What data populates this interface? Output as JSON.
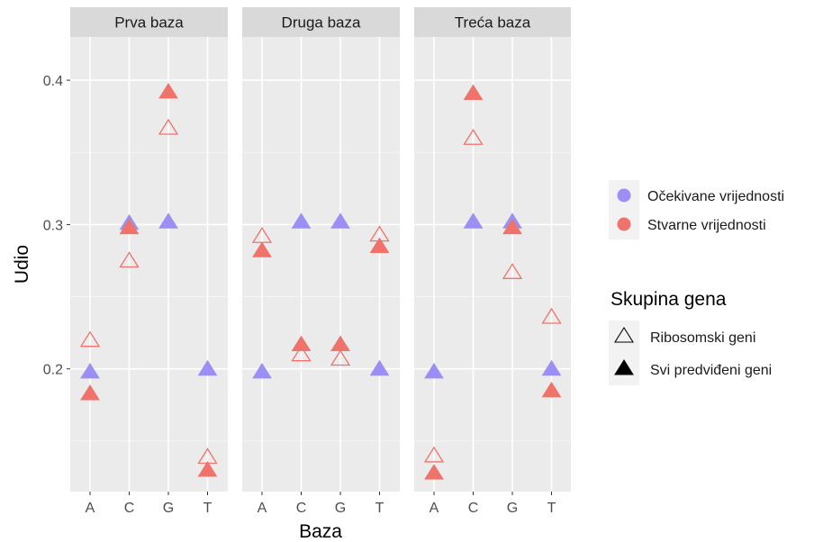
{
  "chart_data": {
    "type": "scatter",
    "facets": [
      "Prva baza",
      "Druga baza",
      "Treća baza"
    ],
    "categories": [
      "A",
      "C",
      "G",
      "T"
    ],
    "xlabel": "Baza",
    "ylabel": "Udio",
    "ylim": [
      0.115,
      0.43
    ],
    "yticks": [
      0.2,
      0.3,
      0.4
    ],
    "ytick_labels": [
      "0.2",
      "0.3",
      "0.4"
    ],
    "grid": true,
    "legend_position": "right",
    "color_legend": {
      "items": [
        {
          "label": "Očekivane vrijednosti",
          "color": "#9b8ff5"
        },
        {
          "label": "Stvarne vrijednosti",
          "color": "#f0736b"
        }
      ]
    },
    "shape_legend": {
      "title": "Skupina gena",
      "items": [
        {
          "label": "Ribosomski geni",
          "fill": "open"
        },
        {
          "label": "Svi predviđeni geni",
          "fill": "filled"
        }
      ]
    },
    "series": [
      {
        "facet": "Prva baza",
        "color": "#9b8ff5",
        "fill": "filled",
        "values": [
          0.198,
          0.301,
          0.302,
          0.2
        ]
      },
      {
        "facet": "Prva baza",
        "color": "#f0736b",
        "fill": "filled",
        "values": [
          0.183,
          0.298,
          0.392,
          0.13
        ]
      },
      {
        "facet": "Prva baza",
        "color": "#f0736b",
        "fill": "open",
        "values": [
          0.22,
          0.275,
          0.367,
          0.139
        ]
      },
      {
        "facet": "Druga baza",
        "color": "#9b8ff5",
        "fill": "filled",
        "values": [
          0.198,
          0.302,
          0.302,
          0.2
        ]
      },
      {
        "facet": "Druga baza",
        "color": "#f0736b",
        "fill": "filled",
        "values": [
          0.282,
          0.217,
          0.217,
          0.285
        ]
      },
      {
        "facet": "Druga baza",
        "color": "#f0736b",
        "fill": "open",
        "values": [
          0.292,
          0.21,
          0.207,
          0.293
        ]
      },
      {
        "facet": "Treća baza",
        "color": "#9b8ff5",
        "fill": "filled",
        "values": [
          0.198,
          0.302,
          0.302,
          0.2
        ]
      },
      {
        "facet": "Treća baza",
        "color": "#f0736b",
        "fill": "filled",
        "values": [
          0.128,
          0.391,
          0.298,
          0.185
        ]
      },
      {
        "facet": "Treća baza",
        "color": "#f0736b",
        "fill": "open",
        "values": [
          0.14,
          0.36,
          0.267,
          0.236
        ]
      }
    ]
  }
}
